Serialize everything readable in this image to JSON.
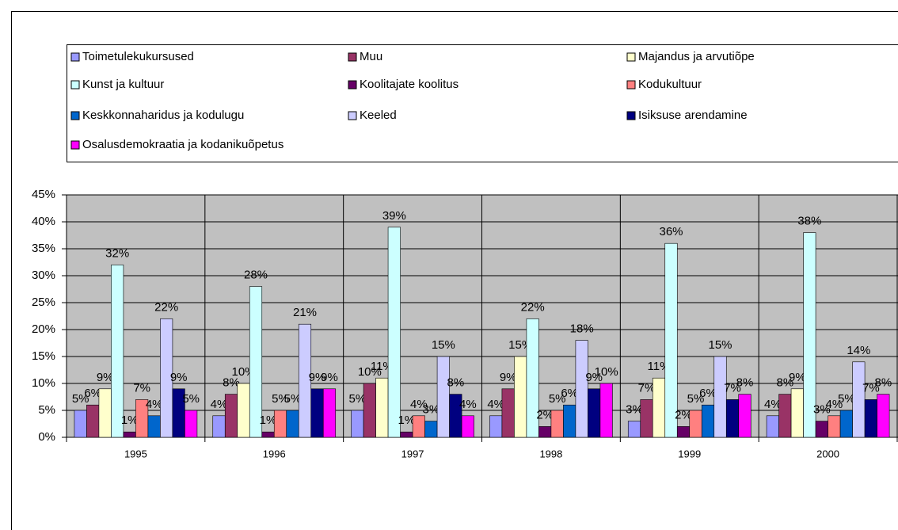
{
  "chart_data": {
    "type": "bar",
    "categories": [
      "1995",
      "1996",
      "1997",
      "1998",
      "1999",
      "2000"
    ],
    "series": [
      {
        "name": "Toimetulekukursused",
        "color": "#9999ff",
        "values": [
          5,
          4,
          5,
          4,
          3,
          4
        ],
        "value_labels": [
          "5%",
          "4%",
          "5%",
          "4%",
          "3%",
          "4%"
        ]
      },
      {
        "name": "Muu",
        "color": "#993366",
        "values": [
          6,
          8,
          10,
          9,
          7,
          8
        ],
        "value_labels": [
          "6%",
          "8%",
          "10%",
          "9%",
          "7%",
          "8%"
        ]
      },
      {
        "name": "Majandus ja arvutiõpe",
        "color": "#ffffcc",
        "values": [
          9,
          10,
          11,
          15,
          11,
          9
        ],
        "value_labels": [
          "9%",
          "10%",
          "11%",
          "15%",
          "11%",
          "9%"
        ]
      },
      {
        "name": "Kunst ja kultuur",
        "color": "#ccffff",
        "values": [
          32,
          28,
          39,
          22,
          36,
          38
        ],
        "value_labels": [
          "32%",
          "28%",
          "39%",
          "22%",
          "36%",
          "38%"
        ]
      },
      {
        "name": "Koolitajate koolitus",
        "color": "#660066",
        "values": [
          1,
          1,
          1,
          2,
          2,
          3
        ],
        "value_labels": [
          "1%",
          "1%",
          "1%",
          "2%",
          "2%",
          "3%"
        ]
      },
      {
        "name": "Kodukultuur",
        "color": "#ff8080",
        "values": [
          7,
          5,
          4,
          5,
          5,
          4
        ],
        "value_labels": [
          "7%",
          "5%",
          "4%",
          "5%",
          "5%",
          "4%"
        ]
      },
      {
        "name": "Keskkonnaharidus ja kodulugu",
        "color": "#0066cc",
        "values": [
          4,
          5,
          3,
          6,
          6,
          5
        ],
        "value_labels": [
          "4%",
          "5%",
          "3%",
          "6%",
          "6%",
          "5%"
        ]
      },
      {
        "name": "Keeled",
        "color": "#ccccff",
        "values": [
          22,
          21,
          15,
          18,
          15,
          14
        ],
        "value_labels": [
          "22%",
          "21%",
          "15%",
          "18%",
          "15%",
          "14%"
        ]
      },
      {
        "name": "Isiksuse arendamine",
        "color": "#000080",
        "values": [
          9,
          9,
          8,
          9,
          7,
          7
        ],
        "value_labels": [
          "9%",
          "9%",
          "8%",
          "9%",
          "7%",
          "7%"
        ]
      },
      {
        "name": "Osalusdemokraatia ja kodanikuõpetus",
        "color": "#ff00ff",
        "values": [
          5,
          9,
          4,
          10,
          8,
          8
        ],
        "value_labels": [
          "5%",
          "9%",
          "4%",
          "10%",
          "8%",
          "8%"
        ]
      }
    ],
    "ylim": [
      0,
      45
    ],
    "yticks": [
      {
        "value": 0,
        "label": "0%"
      },
      {
        "value": 5,
        "label": "5%"
      },
      {
        "value": 10,
        "label": "10%"
      },
      {
        "value": 15,
        "label": "15%"
      },
      {
        "value": 20,
        "label": "20%"
      },
      {
        "value": 25,
        "label": "25%"
      },
      {
        "value": 30,
        "label": "30%"
      },
      {
        "value": 35,
        "label": "35%"
      },
      {
        "value": 40,
        "label": "40%"
      },
      {
        "value": 45,
        "label": "45%"
      }
    ],
    "grid": true,
    "plot_background": "#c0c0c0"
  }
}
